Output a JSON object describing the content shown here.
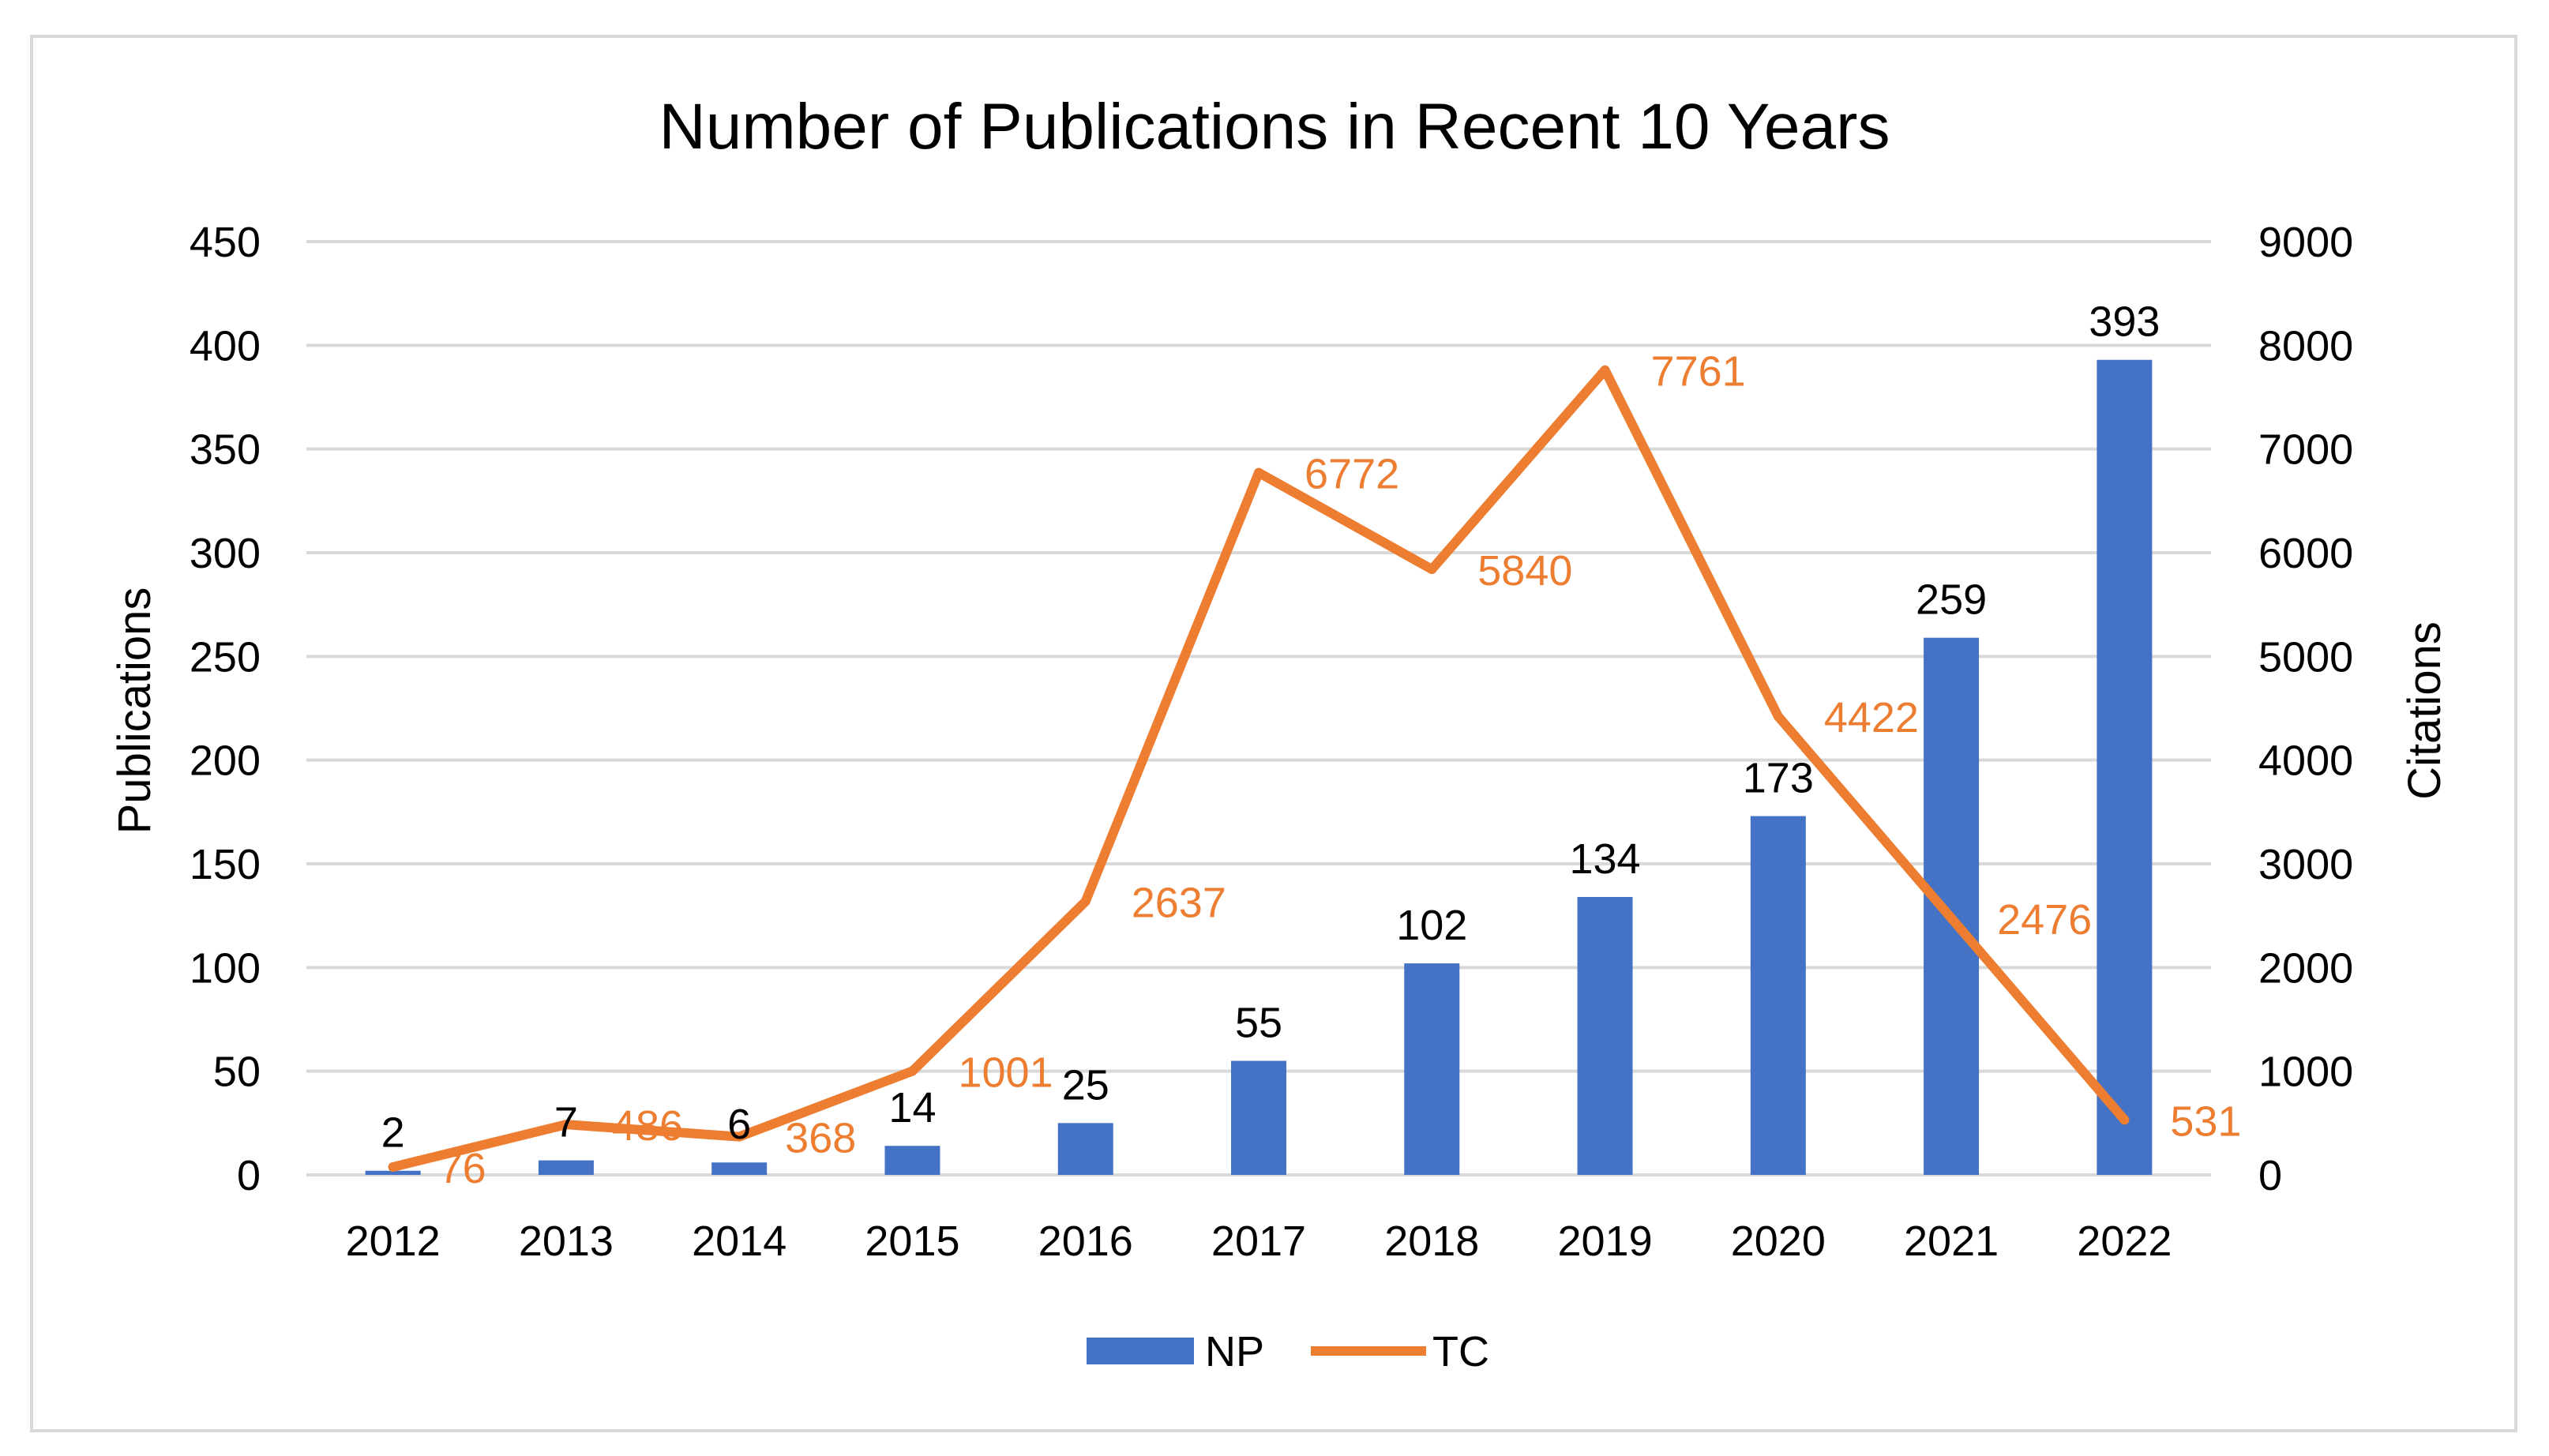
{
  "chart_data": {
    "type": "bar+line",
    "title": "Number of Publications in Recent 10 Years",
    "categories": [
      "2012",
      "2013",
      "2014",
      "2015",
      "2016",
      "2017",
      "2018",
      "2019",
      "2020",
      "2021",
      "2022"
    ],
    "series": [
      {
        "name": "NP",
        "type": "bar",
        "axis": "left",
        "color": "#4472c4",
        "values": [
          2,
          7,
          6,
          14,
          25,
          55,
          102,
          134,
          173,
          259,
          393
        ]
      },
      {
        "name": "TC",
        "type": "line",
        "axis": "right",
        "color": "#ed7d31",
        "values": [
          76,
          486,
          368,
          1001,
          2637,
          6772,
          5840,
          7761,
          4422,
          2476,
          531
        ]
      }
    ],
    "ylabel": "Publications",
    "y2label": "Citations",
    "ylim": [
      0,
      450
    ],
    "y2lim": [
      0,
      9000
    ],
    "yticks": [
      0,
      50,
      100,
      150,
      200,
      250,
      300,
      350,
      400,
      450
    ],
    "y2ticks": [
      0,
      1000,
      2000,
      3000,
      4000,
      5000,
      6000,
      7000,
      8000,
      9000
    ],
    "grid": true,
    "legend": "bottom"
  }
}
